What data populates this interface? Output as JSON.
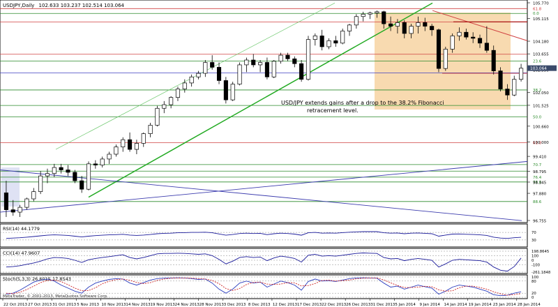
{
  "header": {
    "title": "USDJPY,Daily",
    "ohlc": "102.633 103.237 102.514 103.064"
  },
  "annotation": {
    "line1": "USD/JPY extends gains after a drop to the 38.2% Fibonacci",
    "line2": "retracement level."
  },
  "footer": {
    "copyright": "MetaTrader, © 2001-2013, MetaQuotes Software Corp."
  },
  "colors": {
    "bull_candle": "#ffffff",
    "bear_candle": "#000000",
    "fib_level": "#2a8a2a",
    "resistance": "#d04040",
    "trendline_green": "#22aa22",
    "trendline_blue": "#3c3cae",
    "highlight_zone": "#f8dab0",
    "highlight_left": "#dfe2f4",
    "last_price_box": "#3a4a6a",
    "stoch_main": "#2a3cbe",
    "stoch_signal": "#cc2222",
    "indicator_line": "#1a1a9a"
  },
  "chart_data": [
    {
      "type": "candlestick",
      "symbol": "USDJPY",
      "timeframe": "Daily",
      "ylim": [
        96.755,
        105.77
      ],
      "y_ticks": [
        "105.770",
        "105.115",
        "104.180",
        "103.655",
        "102.990",
        "102.050",
        "101.525",
        "100.660",
        "100.000",
        "99.410",
        "98.795",
        "98.345",
        "97.880",
        "96.755"
      ],
      "x_ticks": [
        "22 Oct 2013",
        "27 Oct 2013",
        "31 Oct 2013",
        "5 Nov 2013",
        "10 Nov 2013",
        "14 Nov 2013",
        "19 Nov 2013",
        "24 Nov 2013",
        "28 Nov 2013",
        "3 Dec 2013",
        "8 Dec 2013",
        "12 Dec 2013",
        "17 Dec 2013",
        "22 Dec 2013",
        "26 Dec 2013",
        "31 Dec 2013",
        "5 Jan 2014",
        "9 Jan 2014",
        "14 Jan 2014",
        "19 Jan 2014",
        "23 Jan 2014",
        "28 Jan 2014"
      ],
      "last_price": "103.064",
      "fib_levels": [
        {
          "label": "61.8",
          "value": 105.53
        },
        {
          "label": "0.0",
          "value": 105.33
        },
        {
          "label": "23.6",
          "value": 103.36
        },
        {
          "label": "38.2",
          "value": 102.16
        },
        {
          "label": "50.0",
          "value": 101.05
        },
        {
          "label": "61.8",
          "value": 99.98
        },
        {
          "label": "70.7",
          "value": 99.07
        },
        {
          "label": "76.4",
          "value": 98.55
        },
        {
          "label": "78.6",
          "value": 98.35
        },
        {
          "label": "88.6",
          "value": 97.54
        }
      ],
      "candles": [
        [
          97.9,
          98.4,
          96.9,
          97.2
        ],
        [
          97.2,
          97.6,
          96.95,
          97.1
        ],
        [
          97.1,
          97.4,
          96.9,
          97.3
        ],
        [
          97.3,
          97.7,
          97.2,
          97.65
        ],
        [
          97.65,
          98.1,
          97.55,
          97.95
        ],
        [
          97.95,
          98.8,
          97.85,
          98.6
        ],
        [
          98.6,
          98.9,
          98.3,
          98.7
        ],
        [
          98.7,
          99.1,
          98.55,
          98.95
        ],
        [
          98.95,
          99.1,
          98.7,
          98.85
        ],
        [
          98.85,
          99.05,
          98.6,
          98.75
        ],
        [
          98.75,
          98.85,
          98.3,
          98.4
        ],
        [
          98.4,
          98.6,
          97.9,
          98.05
        ],
        [
          98.05,
          99.2,
          98.0,
          99.1
        ],
        [
          99.1,
          99.25,
          98.9,
          99.05
        ],
        [
          99.05,
          99.4,
          98.95,
          99.3
        ],
        [
          99.3,
          99.6,
          99.1,
          99.5
        ],
        [
          99.5,
          99.9,
          99.4,
          99.8
        ],
        [
          99.8,
          100.2,
          99.6,
          100.1
        ],
        [
          100.1,
          100.4,
          99.6,
          99.7
        ],
        [
          99.7,
          100.1,
          99.5,
          99.95
        ],
        [
          99.95,
          100.4,
          99.8,
          100.35
        ],
        [
          100.35,
          100.8,
          100.2,
          100.7
        ],
        [
          100.7,
          101.5,
          100.65,
          101.4
        ],
        [
          101.4,
          101.7,
          101.2,
          101.55
        ],
        [
          101.55,
          101.9,
          101.4,
          101.85
        ],
        [
          101.85,
          102.3,
          101.7,
          102.2
        ],
        [
          102.2,
          102.6,
          102.05,
          102.45
        ],
        [
          102.45,
          102.8,
          102.3,
          102.7
        ],
        [
          102.7,
          102.95,
          102.6,
          102.85
        ],
        [
          102.85,
          103.4,
          102.7,
          103.3
        ],
        [
          103.3,
          103.6,
          103.0,
          103.1
        ],
        [
          103.1,
          103.3,
          102.4,
          102.55
        ],
        [
          102.55,
          102.7,
          101.6,
          101.75
        ],
        [
          101.75,
          102.5,
          101.7,
          102.4
        ],
        [
          102.4,
          103.3,
          102.35,
          103.2
        ],
        [
          103.2,
          103.5,
          102.9,
          103.4
        ],
        [
          103.4,
          103.65,
          103.1,
          103.2
        ],
        [
          103.2,
          103.4,
          102.9,
          103.3
        ],
        [
          103.3,
          103.5,
          102.6,
          102.7
        ],
        [
          102.7,
          103.4,
          102.65,
          103.35
        ],
        [
          103.35,
          103.7,
          103.25,
          103.6
        ],
        [
          103.6,
          103.7,
          103.35,
          103.45
        ],
        [
          103.45,
          103.55,
          103.1,
          103.25
        ],
        [
          103.25,
          103.4,
          102.5,
          102.6
        ],
        [
          102.6,
          104.4,
          102.55,
          104.25
        ],
        [
          104.25,
          104.5,
          104.0,
          104.4
        ],
        [
          104.4,
          104.65,
          103.8,
          103.95
        ],
        [
          103.95,
          104.3,
          103.85,
          104.2
        ],
        [
          104.2,
          104.4,
          103.95,
          104.1
        ],
        [
          104.1,
          104.7,
          104.05,
          104.6
        ],
        [
          104.6,
          104.9,
          104.4,
          104.85
        ],
        [
          104.85,
          105.3,
          104.7,
          105.2
        ],
        [
          105.2,
          105.4,
          105.0,
          105.3
        ],
        [
          105.3,
          105.4,
          105.1,
          105.35
        ],
        [
          105.35,
          105.45,
          105.15,
          105.4
        ],
        [
          105.4,
          105.44,
          104.7,
          104.9
        ],
        [
          104.9,
          105.2,
          104.6,
          104.8
        ],
        [
          104.8,
          105.1,
          104.5,
          104.95
        ],
        [
          104.95,
          105.05,
          104.3,
          104.5
        ],
        [
          104.5,
          104.9,
          104.3,
          104.8
        ],
        [
          104.8,
          105.2,
          104.5,
          104.95
        ],
        [
          104.95,
          105.15,
          104.6,
          104.8
        ],
        [
          104.8,
          104.9,
          104.4,
          104.65
        ],
        [
          104.65,
          104.7,
          102.9,
          103.05
        ],
        [
          103.05,
          103.95,
          102.95,
          103.85
        ],
        [
          103.85,
          104.5,
          103.7,
          104.4
        ],
        [
          104.4,
          104.75,
          104.2,
          104.55
        ],
        [
          104.55,
          104.7,
          104.25,
          104.35
        ],
        [
          104.35,
          104.55,
          104.1,
          104.3
        ],
        [
          104.3,
          104.45,
          103.9,
          104.1
        ],
        [
          104.1,
          104.8,
          103.7,
          103.8
        ],
        [
          103.8,
          104.0,
          102.8,
          102.95
        ],
        [
          102.95,
          103.1,
          102.1,
          102.2
        ],
        [
          102.2,
          102.4,
          101.75,
          101.95
        ],
        [
          101.95,
          102.75,
          101.9,
          102.6
        ],
        [
          102.6,
          103.24,
          102.51,
          103.06
        ]
      ]
    },
    {
      "type": "line",
      "title": "RSI(14) 44.1779",
      "y_ticks": [
        "70",
        "30"
      ],
      "values": [
        38,
        40,
        42,
        45,
        48,
        52,
        55,
        57,
        56,
        54,
        50,
        46,
        50,
        53,
        55,
        57,
        58,
        60,
        56,
        54,
        56,
        59,
        63,
        65,
        66,
        68,
        69,
        70,
        70,
        71,
        68,
        62,
        55,
        59,
        64,
        66,
        64,
        65,
        58,
        63,
        66,
        64,
        61,
        55,
        68,
        70,
        66,
        67,
        66,
        69,
        71,
        73,
        74,
        74,
        74,
        68,
        66,
        67,
        63,
        66,
        67,
        65,
        63,
        50,
        56,
        61,
        62,
        60,
        59,
        57,
        54,
        45,
        40,
        38,
        42,
        44
      ]
    },
    {
      "type": "line",
      "title": "CCI(14) 47.9607",
      "y_ticks": [
        "198.8645",
        "100",
        "0",
        "-100",
        "-261.1848"
      ],
      "values": [
        -150,
        -140,
        -120,
        -90,
        -60,
        -20,
        30,
        60,
        55,
        40,
        0,
        -50,
        10,
        40,
        60,
        80,
        100,
        120,
        60,
        30,
        60,
        100,
        140,
        150,
        150,
        155,
        150,
        140,
        130,
        140,
        100,
        20,
        -80,
        -20,
        60,
        80,
        60,
        70,
        -10,
        50,
        90,
        70,
        40,
        -40,
        110,
        130,
        90,
        100,
        90,
        110,
        130,
        150,
        160,
        155,
        150,
        60,
        30,
        40,
        -10,
        20,
        40,
        20,
        0,
        -150,
        -80,
        0,
        20,
        10,
        0,
        -10,
        -40,
        -150,
        -220,
        -240,
        -140,
        48
      ]
    },
    {
      "type": "line",
      "title": "Stoch(5,3,3) 26.6015 17.8543",
      "y_ticks": [
        "100",
        "80",
        "20",
        "0"
      ],
      "series": [
        {
          "name": "main",
          "values": [
            15,
            20,
            35,
            55,
            75,
            85,
            90,
            80,
            60,
            45,
            30,
            20,
            50,
            70,
            80,
            88,
            92,
            90,
            70,
            60,
            72,
            85,
            92,
            94,
            95,
            96,
            95,
            92,
            88,
            90,
            70,
            40,
            20,
            40,
            70,
            80,
            70,
            75,
            50,
            65,
            80,
            72,
            60,
            35,
            78,
            90,
            80,
            82,
            78,
            85,
            92,
            95,
            96,
            95,
            94,
            70,
            50,
            55,
            40,
            50,
            60,
            52,
            45,
            15,
            30,
            50,
            60,
            55,
            50,
            40,
            30,
            12,
            8,
            10,
            20,
            27
          ]
        },
        {
          "name": "signal",
          "values": [
            20,
            18,
            25,
            38,
            55,
            72,
            83,
            85,
            77,
            62,
            45,
            32,
            33,
            47,
            67,
            79,
            87,
            90,
            84,
            73,
            67,
            72,
            83,
            90,
            94,
            95,
            95,
            94,
            92,
            90,
            83,
            67,
            43,
            33,
            43,
            63,
            73,
            75,
            65,
            63,
            65,
            72,
            71,
            56,
            58,
            68,
            83,
            84,
            80,
            82,
            85,
            91,
            94,
            95,
            95,
            86,
            71,
            58,
            48,
            48,
            50,
            54,
            52,
            37,
            30,
            32,
            47,
            55,
            55,
            48,
            40,
            27,
            17,
            10,
            13,
            18
          ]
        }
      ]
    }
  ]
}
